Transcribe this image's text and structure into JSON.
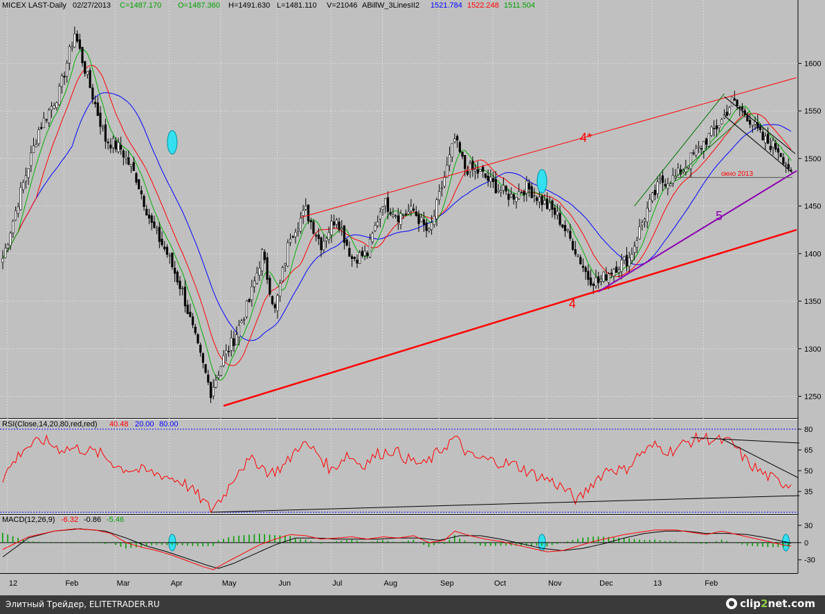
{
  "chart_data": [
    {
      "type": "candlestick",
      "header": {
        "symbol": "MICEX LAST-Daily",
        "date": "02/27/2013",
        "close": "C=1487.170",
        "open": "O=1487.360",
        "high": "H=1491.630",
        "low": "L=1481.110",
        "volume": "V=21046",
        "indicator": "ABillW_3LinesII2",
        "ma_blue": "1521.784",
        "ma_red": "1522.248",
        "ma_green": "1511.504"
      },
      "y_ticks": [
        "1600",
        "1550",
        "1500",
        "1450",
        "1400",
        "1350",
        "1300",
        "1250"
      ],
      "y_tick_values": [
        1600,
        1550,
        1500,
        1450,
        1400,
        1350,
        1300,
        1250
      ],
      "ylim": [
        1230,
        1652
      ],
      "x_ticks": [
        "12",
        "Feb",
        "Mar",
        "Apr",
        "May",
        "Jun",
        "Jul",
        "Aug",
        "Sep",
        "Oct",
        "Nov",
        "Dec",
        "13",
        "Feb"
      ],
      "price_anchors": [
        [
          0,
          1395
        ],
        [
          6,
          1455
        ],
        [
          14,
          1530
        ],
        [
          22,
          1570
        ],
        [
          28,
          1632
        ],
        [
          34,
          1575
        ],
        [
          40,
          1520
        ],
        [
          46,
          1510
        ],
        [
          52,
          1480
        ],
        [
          58,
          1430
        ],
        [
          64,
          1400
        ],
        [
          70,
          1360
        ],
        [
          76,
          1300
        ],
        [
          81,
          1255
        ],
        [
          86,
          1290
        ],
        [
          90,
          1310
        ],
        [
          96,
          1350
        ],
        [
          101,
          1400
        ],
        [
          106,
          1340
        ],
        [
          112,
          1420
        ],
        [
          118,
          1445
        ],
        [
          124,
          1410
        ],
        [
          130,
          1440
        ],
        [
          136,
          1395
        ],
        [
          142,
          1400
        ],
        [
          148,
          1455
        ],
        [
          154,
          1440
        ],
        [
          160,
          1445
        ],
        [
          166,
          1420
        ],
        [
          172,
          1480
        ],
        [
          176,
          1520
        ],
        [
          180,
          1490
        ],
        [
          186,
          1485
        ],
        [
          192,
          1470
        ],
        [
          198,
          1460
        ],
        [
          204,
          1470
        ],
        [
          210,
          1455
        ],
        [
          216,
          1440
        ],
        [
          222,
          1410
        ],
        [
          228,
          1375
        ],
        [
          232,
          1370
        ],
        [
          238,
          1385
        ],
        [
          244,
          1395
        ],
        [
          250,
          1440
        ],
        [
          256,
          1475
        ],
        [
          262,
          1480
        ],
        [
          268,
          1500
        ],
        [
          274,
          1520
        ],
        [
          280,
          1540
        ],
        [
          284,
          1560
        ],
        [
          290,
          1545
        ],
        [
          296,
          1520
        ],
        [
          302,
          1510
        ],
        [
          307,
          1487
        ]
      ],
      "annotations": {
        "wave_4": "4",
        "wave_4_star": "4*",
        "wave_5": "5",
        "gap_label": "окно 2013"
      },
      "colors": {
        "blue": "#0000ff",
        "red": "#ff0000",
        "green": "#00b000",
        "purple": "#8b00b0",
        "cyan": "#33e0f0"
      }
    },
    {
      "type": "line",
      "title": "RSI(Close,14,20,80,red,red)",
      "values_text": {
        "rsi": "40.48",
        "low": "20.00",
        "high": "80.00"
      },
      "y_ticks": [
        "80",
        "65",
        "50",
        "35"
      ],
      "y_tick_values": [
        80,
        65,
        50,
        35
      ],
      "ylim": [
        16,
        84
      ],
      "levels": [
        20,
        80
      ],
      "rsi_anchors": [
        [
          0,
          45
        ],
        [
          8,
          66
        ],
        [
          16,
          72
        ],
        [
          22,
          66
        ],
        [
          30,
          66
        ],
        [
          38,
          62
        ],
        [
          46,
          52
        ],
        [
          54,
          50
        ],
        [
          62,
          47
        ],
        [
          70,
          42
        ],
        [
          76,
          32
        ],
        [
          81,
          22
        ],
        [
          86,
          32
        ],
        [
          92,
          52
        ],
        [
          98,
          58
        ],
        [
          104,
          48
        ],
        [
          110,
          54
        ],
        [
          116,
          70
        ],
        [
          122,
          64
        ],
        [
          128,
          50
        ],
        [
          134,
          62
        ],
        [
          140,
          54
        ],
        [
          146,
          62
        ],
        [
          152,
          65
        ],
        [
          158,
          58
        ],
        [
          164,
          54
        ],
        [
          170,
          64
        ],
        [
          176,
          74
        ],
        [
          182,
          60
        ],
        [
          188,
          58
        ],
        [
          194,
          56
        ],
        [
          200,
          54
        ],
        [
          206,
          48
        ],
        [
          212,
          44
        ],
        [
          218,
          38
        ],
        [
          224,
          28
        ],
        [
          230,
          42
        ],
        [
          236,
          52
        ],
        [
          242,
          50
        ],
        [
          248,
          62
        ],
        [
          254,
          68
        ],
        [
          260,
          64
        ],
        [
          266,
          70
        ],
        [
          272,
          74
        ],
        [
          278,
          72
        ],
        [
          284,
          70
        ],
        [
          290,
          56
        ],
        [
          296,
          48
        ],
        [
          302,
          42
        ],
        [
          307,
          40
        ]
      ]
    },
    {
      "type": "line",
      "title": "MACD(12,26,9)",
      "values_text": {
        "macd": "-6.32",
        "signal": "-0.86",
        "hist": "-5.46"
      },
      "y_ticks": [
        "30",
        "0",
        "-30"
      ],
      "y_tick_values": [
        30,
        0,
        -30
      ],
      "ylim": [
        -52,
        42
      ],
      "macd_anchors": [
        [
          0,
          -12
        ],
        [
          10,
          10
        ],
        [
          20,
          20
        ],
        [
          28,
          24
        ],
        [
          36,
          22
        ],
        [
          42,
          16
        ],
        [
          48,
          0
        ],
        [
          54,
          -8
        ],
        [
          60,
          -14
        ],
        [
          66,
          -22
        ],
        [
          72,
          -32
        ],
        [
          78,
          -42
        ],
        [
          82,
          -47
        ],
        [
          88,
          -32
        ],
        [
          94,
          -18
        ],
        [
          100,
          -4
        ],
        [
          106,
          6
        ],
        [
          112,
          14
        ],
        [
          118,
          12
        ],
        [
          124,
          6
        ],
        [
          130,
          8
        ],
        [
          136,
          10
        ],
        [
          142,
          6
        ],
        [
          148,
          10
        ],
        [
          154,
          8
        ],
        [
          160,
          12
        ],
        [
          166,
          0
        ],
        [
          172,
          4
        ],
        [
          176,
          20
        ],
        [
          182,
          12
        ],
        [
          188,
          6
        ],
        [
          194,
          2
        ],
        [
          200,
          -4
        ],
        [
          206,
          -10
        ],
        [
          212,
          -16
        ],
        [
          218,
          -14
        ],
        [
          224,
          -6
        ],
        [
          230,
          2
        ],
        [
          236,
          8
        ],
        [
          242,
          14
        ],
        [
          248,
          18
        ],
        [
          254,
          22
        ],
        [
          262,
          22
        ],
        [
          268,
          18
        ],
        [
          274,
          14
        ],
        [
          280,
          20
        ],
        [
          286,
          14
        ],
        [
          292,
          8
        ],
        [
          298,
          2
        ],
        [
          304,
          -4
        ],
        [
          307,
          -6
        ]
      ],
      "signal_anchors": [
        [
          0,
          -25
        ],
        [
          10,
          8
        ],
        [
          20,
          20
        ],
        [
          30,
          24
        ],
        [
          40,
          20
        ],
        [
          48,
          8
        ],
        [
          56,
          -6
        ],
        [
          64,
          -16
        ],
        [
          72,
          -28
        ],
        [
          80,
          -40
        ],
        [
          84,
          -45
        ],
        [
          90,
          -36
        ],
        [
          98,
          -20
        ],
        [
          106,
          -4
        ],
        [
          114,
          8
        ],
        [
          122,
          8
        ],
        [
          130,
          6
        ],
        [
          138,
          6
        ],
        [
          146,
          6
        ],
        [
          154,
          8
        ],
        [
          162,
          8
        ],
        [
          170,
          4
        ],
        [
          178,
          12
        ],
        [
          186,
          12
        ],
        [
          194,
          6
        ],
        [
          202,
          -2
        ],
        [
          210,
          -10
        ],
        [
          218,
          -14
        ],
        [
          226,
          -10
        ],
        [
          234,
          -2
        ],
        [
          242,
          8
        ],
        [
          250,
          16
        ],
        [
          258,
          20
        ],
        [
          266,
          20
        ],
        [
          274,
          16
        ],
        [
          282,
          16
        ],
        [
          290,
          14
        ],
        [
          298,
          8
        ],
        [
          304,
          2
        ],
        [
          307,
          -1
        ]
      ]
    }
  ],
  "footer": {
    "source": "Элитный Трейдер, ELITETRADER.RU",
    "logo_prefix": "clip",
    "logo_num": "2",
    "logo_suffix": "net.com"
  }
}
